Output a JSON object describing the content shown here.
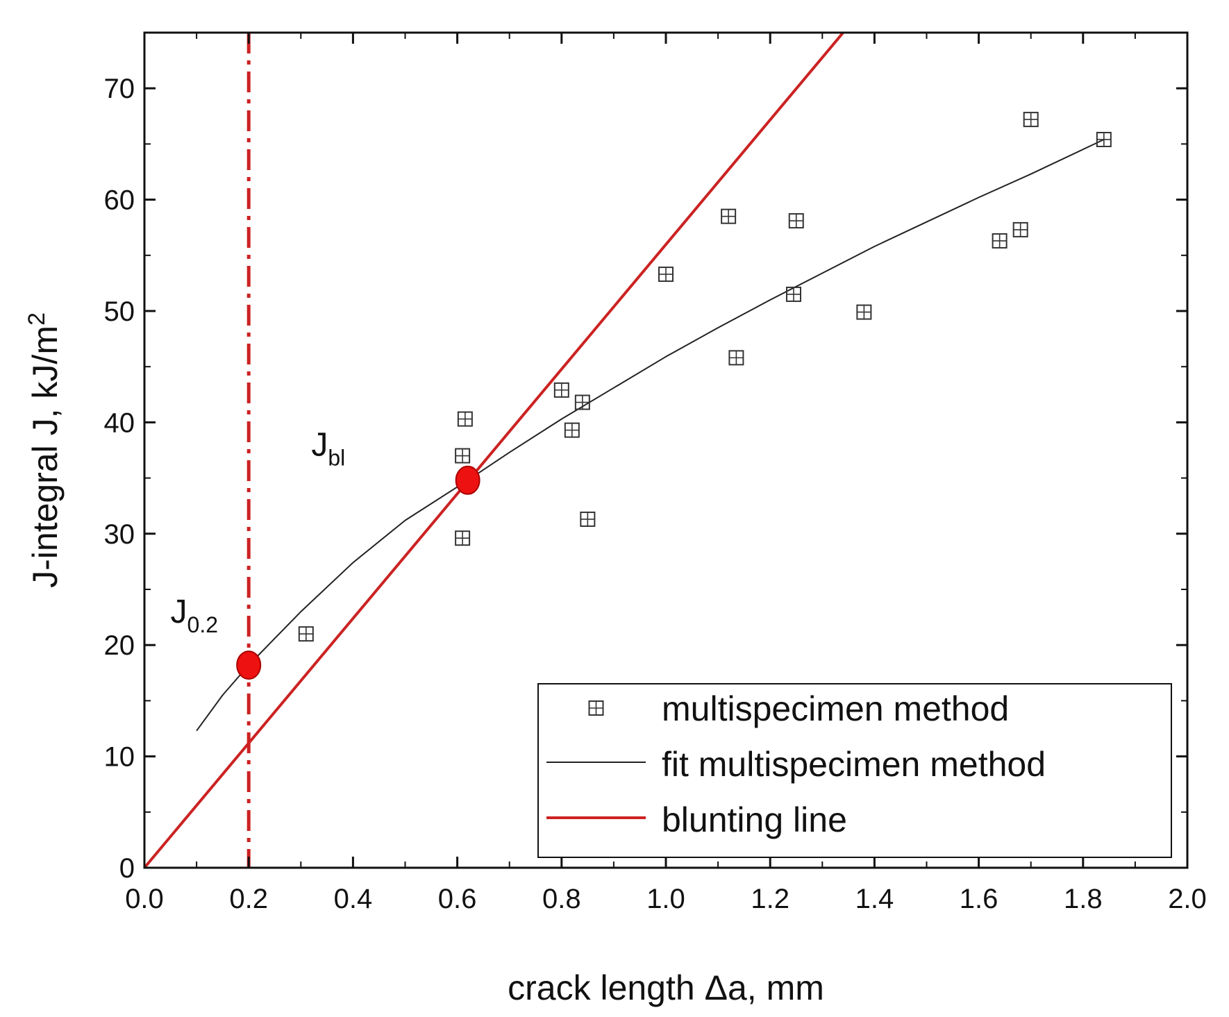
{
  "chart_data": {
    "type": "scatter",
    "xlabel": "crack length Δa, mm",
    "ylabel_main": "J-integral J, kJ/m",
    "ylabel_sup": "2",
    "xlim": [
      0.0,
      2.0
    ],
    "ylim": [
      0,
      75
    ],
    "x_ticks": [
      "0.0",
      "0.2",
      "0.4",
      "0.6",
      "0.8",
      "1.0",
      "1.2",
      "1.4",
      "1.6",
      "1.8",
      "2.0"
    ],
    "y_ticks": [
      "0",
      "10",
      "20",
      "30",
      "40",
      "50",
      "60",
      "70"
    ],
    "grid": false,
    "legend_position": "bottom-right",
    "series": [
      {
        "name": "multispecimen method",
        "kind": "scatter",
        "marker": "square-cross",
        "color": "#333333",
        "points": [
          [
            0.31,
            21.0
          ],
          [
            0.61,
            29.6
          ],
          [
            0.61,
            37.0
          ],
          [
            0.615,
            40.3
          ],
          [
            0.8,
            42.9
          ],
          [
            0.82,
            39.3
          ],
          [
            0.84,
            41.8
          ],
          [
            0.85,
            31.3
          ],
          [
            1.0,
            53.3
          ],
          [
            1.12,
            58.5
          ],
          [
            1.135,
            45.8
          ],
          [
            1.245,
            51.5
          ],
          [
            1.25,
            58.1
          ],
          [
            1.38,
            49.9
          ],
          [
            1.64,
            56.3
          ],
          [
            1.68,
            57.3
          ],
          [
            1.7,
            67.2
          ],
          [
            1.84,
            65.4
          ]
        ]
      },
      {
        "name": "fit multispecimen method",
        "kind": "line",
        "color": "#222222",
        "points": [
          [
            0.1,
            12.3
          ],
          [
            0.15,
            15.5
          ],
          [
            0.2,
            18.2
          ],
          [
            0.3,
            23.0
          ],
          [
            0.4,
            27.4
          ],
          [
            0.5,
            31.2
          ],
          [
            0.62,
            34.8
          ],
          [
            0.7,
            37.3
          ],
          [
            0.8,
            40.3
          ],
          [
            0.9,
            43.1
          ],
          [
            1.0,
            45.9
          ],
          [
            1.1,
            48.5
          ],
          [
            1.2,
            51.0
          ],
          [
            1.3,
            53.4
          ],
          [
            1.4,
            55.8
          ],
          [
            1.5,
            58.0
          ],
          [
            1.6,
            60.2
          ],
          [
            1.7,
            62.3
          ],
          [
            1.84,
            65.4
          ]
        ]
      },
      {
        "name": "blunting line",
        "kind": "line",
        "color": "#cc2222",
        "points": [
          [
            0.0,
            0.0
          ],
          [
            1.34,
            75.0
          ]
        ]
      }
    ],
    "vertical_line": {
      "x": 0.2,
      "style": "dash-dot",
      "color": "#cc2222"
    },
    "highlight_points": [
      {
        "x": 0.2,
        "y": 18.2,
        "color": "#ee1111"
      },
      {
        "x": 0.62,
        "y": 34.8,
        "color": "#ee1111"
      }
    ],
    "annotations": [
      {
        "main": "J",
        "sub": "0.2",
        "x": 0.05,
        "y": 22
      },
      {
        "main": "J",
        "sub": "bl",
        "x": 0.32,
        "y": 37
      }
    ]
  }
}
